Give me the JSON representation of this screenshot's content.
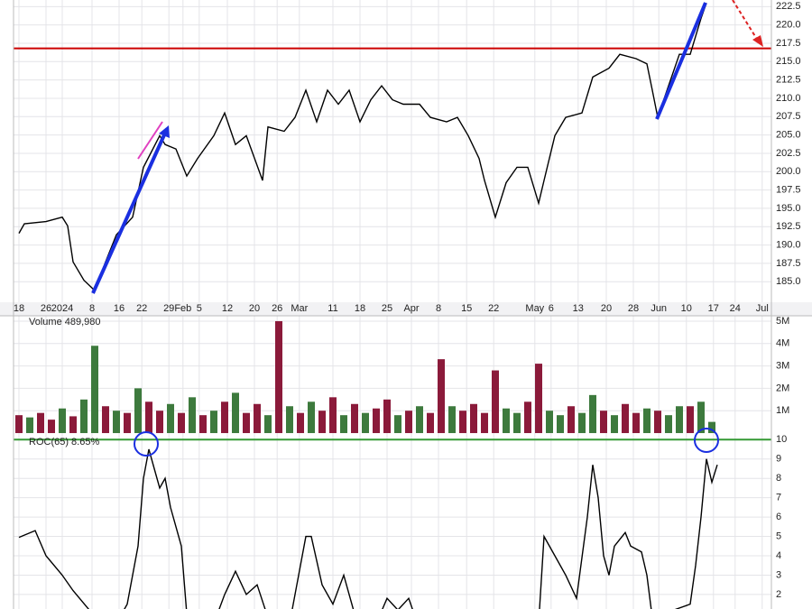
{
  "chart_data": [
    {
      "type": "line",
      "color": "#000000",
      "x": [
        0,
        1,
        5,
        8,
        9,
        10,
        12,
        14,
        16,
        18,
        21,
        23,
        26,
        27,
        29,
        31,
        33,
        36,
        38,
        40,
        42,
        45,
        46,
        49,
        51,
        53,
        55,
        57,
        59,
        61,
        63,
        65,
        67,
        69,
        71,
        74,
        76,
        79,
        81,
        83,
        85,
        86,
        88,
        90,
        92,
        94,
        96,
        97,
        99,
        101,
        104,
        106,
        109,
        111,
        114,
        116,
        117,
        118,
        120,
        122,
        124,
        126,
        127
      ],
      "values": [
        191.6,
        192.9,
        193.2,
        193.8,
        192.6,
        187.7,
        185.2,
        183.8,
        187.7,
        191.4,
        193.8,
        200.6,
        204.9,
        203.7,
        203.1,
        199.4,
        201.8,
        204.9,
        208.0,
        203.7,
        204.9,
        198.8,
        206.1,
        205.5,
        207.4,
        211.1,
        206.8,
        211.1,
        209.2,
        211.1,
        206.8,
        209.8,
        211.7,
        209.8,
        209.2,
        209.2,
        207.4,
        206.8,
        207.4,
        204.9,
        201.8,
        198.8,
        193.8,
        198.5,
        200.6,
        200.6,
        195.7,
        198.8,
        204.9,
        207.4,
        208.0,
        212.9,
        214.1,
        216.0,
        215.4,
        214.7,
        211.1,
        207.4,
        211.7,
        216.0,
        216.0,
        220.9,
        223.0
      ],
      "xlim": [
        -1,
        139
      ],
      "ylim": [
        182.2,
        223.4
      ],
      "grid": true,
      "reference_line": 216.8,
      "reference_color": "#cc0000",
      "xticks": [
        {
          "value": 0,
          "label": "18"
        },
        {
          "value": 5,
          "label": "26"
        },
        {
          "value": 8,
          "label": "2024"
        },
        {
          "value": 13.5,
          "label": "8"
        },
        {
          "value": 18.5,
          "label": "16"
        },
        {
          "value": 22.7,
          "label": "22"
        },
        {
          "value": 27.7,
          "label": "29"
        },
        {
          "value": 30.3,
          "label": "Feb"
        },
        {
          "value": 33.3,
          "label": "5"
        },
        {
          "value": 38.5,
          "label": "12"
        },
        {
          "value": 43.5,
          "label": "20"
        },
        {
          "value": 47.7,
          "label": "26"
        },
        {
          "value": 51.8,
          "label": "Mar"
        },
        {
          "value": 58,
          "label": "11"
        },
        {
          "value": 63,
          "label": "18"
        },
        {
          "value": 68,
          "label": "25"
        },
        {
          "value": 72.5,
          "label": "Apr"
        },
        {
          "value": 77.5,
          "label": "8"
        },
        {
          "value": 82.7,
          "label": "15"
        },
        {
          "value": 87.7,
          "label": "22"
        },
        {
          "value": 95.3,
          "label": "May"
        },
        {
          "value": 98.3,
          "label": "6"
        },
        {
          "value": 103.3,
          "label": "13"
        },
        {
          "value": 108.5,
          "label": "20"
        },
        {
          "value": 113.5,
          "label": "28"
        },
        {
          "value": 118.2,
          "label": "Jun"
        },
        {
          "value": 123.3,
          "label": "10"
        },
        {
          "value": 128.3,
          "label": "17"
        },
        {
          "value": 132.3,
          "label": "24"
        },
        {
          "value": 137.3,
          "label": "Jul"
        }
      ],
      "yticks": [
        222.5,
        {
          "value": 220,
          "label": "220.0"
        },
        217.5,
        {
          "value": 215,
          "label": "215.0"
        },
        212.5,
        {
          "value": 210,
          "label": "210.0"
        },
        207.5,
        {
          "value": 205,
          "label": "205.0"
        },
        202.5,
        {
          "value": 200,
          "label": "200.0"
        },
        197.5,
        {
          "value": 195,
          "label": "195.0"
        },
        192.5,
        {
          "value": 190,
          "label": "190.0"
        },
        187.5,
        {
          "value": 185,
          "label": "185.0"
        }
      ]
    },
    {
      "type": "bar",
      "title": "Volume 489,980",
      "x": [
        0,
        2,
        4,
        6,
        8,
        10,
        12,
        14,
        16,
        18,
        20,
        22,
        24,
        26,
        28,
        30,
        32,
        34,
        36,
        38,
        40,
        42,
        44,
        46,
        48,
        50,
        52,
        54,
        56,
        58,
        60,
        62,
        64,
        66,
        68,
        70,
        72,
        74,
        76,
        78,
        80,
        82,
        84,
        86,
        88,
        90,
        92,
        94,
        96,
        98,
        100,
        102,
        104,
        106,
        108,
        110,
        112,
        114,
        116,
        118,
        120,
        122,
        124,
        126,
        128
      ],
      "values": [
        800000,
        700000,
        900000,
        600000,
        1100000,
        750000,
        1500000,
        3900000,
        1200000,
        1000000,
        900000,
        2000000,
        1400000,
        1000000,
        1300000,
        900000,
        1600000,
        800000,
        1000000,
        1400000,
        1800000,
        900000,
        1300000,
        800000,
        5000000,
        1200000,
        900000,
        1400000,
        1000000,
        1600000,
        800000,
        1300000,
        900000,
        1100000,
        1500000,
        800000,
        1000000,
        1200000,
        900000,
        3300000,
        1200000,
        1000000,
        1300000,
        900000,
        2800000,
        1100000,
        900000,
        1400000,
        3100000,
        1000000,
        800000,
        1200000,
        900000,
        1700000,
        1000000,
        800000,
        1300000,
        900000,
        1100000,
        1000000,
        800000,
        1200000,
        1200000,
        1400000,
        500000
      ],
      "colors": [
        "#8b1a3a",
        "#3d7a3d",
        "#8b1a3a",
        "#8b1a3a",
        "#3d7a3d",
        "#8b1a3a",
        "#3d7a3d",
        "#3d7a3d",
        "#8b1a3a",
        "#3d7a3d",
        "#8b1a3a",
        "#3d7a3d",
        "#8b1a3a",
        "#8b1a3a",
        "#3d7a3d",
        "#8b1a3a",
        "#3d7a3d",
        "#8b1a3a",
        "#3d7a3d",
        "#8b1a3a",
        "#3d7a3d",
        "#8b1a3a",
        "#8b1a3a",
        "#3d7a3d",
        "#8b1a3a",
        "#3d7a3d",
        "#8b1a3a",
        "#3d7a3d",
        "#8b1a3a",
        "#8b1a3a",
        "#3d7a3d",
        "#8b1a3a",
        "#3d7a3d",
        "#8b1a3a",
        "#8b1a3a",
        "#3d7a3d",
        "#8b1a3a",
        "#3d7a3d",
        "#8b1a3a",
        "#8b1a3a",
        "#3d7a3d",
        "#8b1a3a",
        "#8b1a3a",
        "#8b1a3a",
        "#8b1a3a",
        "#3d7a3d",
        "#3d7a3d",
        "#8b1a3a",
        "#8b1a3a",
        "#3d7a3d",
        "#3d7a3d",
        "#8b1a3a",
        "#3d7a3d",
        "#3d7a3d",
        "#8b1a3a",
        "#3d7a3d",
        "#8b1a3a",
        "#8b1a3a",
        "#3d7a3d",
        "#8b1a3a",
        "#3d7a3d",
        "#3d7a3d",
        "#8b1a3a",
        "#3d7a3d",
        "#3d7a3d"
      ],
      "xlim": [
        -1,
        139
      ],
      "ylim": [
        -120000,
        5240000
      ],
      "yticks": [
        {
          "value": 5000000,
          "label": "5M"
        },
        {
          "value": 4000000,
          "label": "4M"
        },
        {
          "value": 3000000,
          "label": "3M"
        },
        {
          "value": 2000000,
          "label": "2M"
        },
        {
          "value": 1000000,
          "label": "1M"
        }
      ]
    },
    {
      "type": "line",
      "title": "ROC(65) 8.65%",
      "color": "#000000",
      "x": [
        0,
        3,
        5,
        8,
        10,
        13,
        18,
        20,
        22,
        23,
        24,
        25,
        26,
        27,
        28,
        29,
        30,
        31,
        36,
        38,
        40,
        42,
        44,
        46,
        50,
        51,
        53,
        54,
        56,
        58,
        60,
        62,
        66,
        68,
        70,
        72,
        73,
        78,
        96,
        97,
        99,
        101,
        103,
        105,
        106,
        107,
        108,
        109,
        110,
        112,
        113,
        115,
        116,
        117,
        124,
        125,
        126,
        127,
        128,
        129
      ],
      "values": [
        4.95,
        5.3,
        4.0,
        3.0,
        2.2,
        1.2,
        0.5,
        1.5,
        4.5,
        8.0,
        9.5,
        8.5,
        7.5,
        8.0,
        6.5,
        5.5,
        4.5,
        1.0,
        0.5,
        2.0,
        3.2,
        2.0,
        2.5,
        0.8,
        0.5,
        2.0,
        5.0,
        5.0,
        2.5,
        1.5,
        3.0,
        1.0,
        0.5,
        1.8,
        1.2,
        1.8,
        1.0,
        0.5,
        0.5,
        5.0,
        4.0,
        3.0,
        1.8,
        6.0,
        8.7,
        7.0,
        4.0,
        3.0,
        4.5,
        5.2,
        4.5,
        4.2,
        3.0,
        0.8,
        1.5,
        3.5,
        6.0,
        9.0,
        7.8,
        8.7
      ],
      "xlim": [
        -1,
        139
      ],
      "ylim": [
        1.25,
        10.2
      ],
      "reference_line": 10,
      "reference_color": "#339933",
      "yticks": [
        10,
        9,
        8,
        7,
        6,
        5,
        4,
        3,
        2
      ]
    }
  ]
}
